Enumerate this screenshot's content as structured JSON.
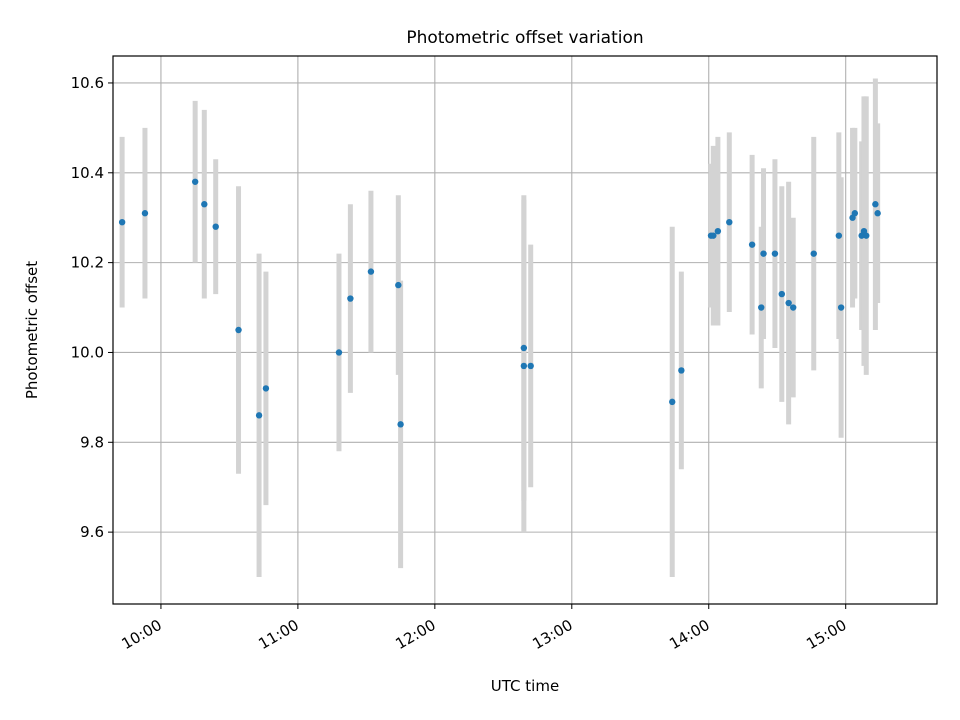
{
  "chart_data": {
    "type": "scatter",
    "title": "Photometric offset variation",
    "xlabel": "UTC time",
    "ylabel": "Photometric offset",
    "xlim": [
      "09:39",
      "15:40"
    ],
    "ylim": [
      9.44,
      10.66
    ],
    "xticks": [
      "10:00",
      "11:00",
      "12:00",
      "13:00",
      "14:00",
      "15:00"
    ],
    "yticks": [
      "9.6",
      "9.8",
      "10.0",
      "10.2",
      "10.4",
      "10.6"
    ],
    "grid": true,
    "legend": "none",
    "colors": {
      "points": "#1f77b4",
      "errorbars": "#d3d3d3",
      "grid": "#b0b0b0"
    },
    "series": [
      {
        "x": [
          "09:43",
          "09:53",
          "10:15",
          "10:19",
          "10:24",
          "10:34",
          "10:43",
          "10:46",
          "11:18",
          "11:23",
          "11:32",
          "11:44",
          "11:45",
          "12:39",
          "12:39",
          "12:42",
          "13:44",
          "13:48",
          "14:01",
          "14:02",
          "14:04",
          "14:09",
          "14:19",
          "14:23",
          "14:24",
          "14:29",
          "14:32",
          "14:35",
          "14:37",
          "14:46",
          "14:57",
          "14:58",
          "15:03",
          "15:04",
          "15:07",
          "15:08",
          "15:09",
          "15:13",
          "15:14"
        ],
        "y": [
          10.29,
          10.31,
          10.38,
          10.33,
          10.28,
          10.05,
          9.86,
          9.92,
          10.0,
          10.12,
          10.18,
          10.15,
          9.84,
          10.01,
          9.97,
          9.97,
          9.89,
          9.96,
          10.26,
          10.26,
          10.27,
          10.29,
          10.24,
          10.1,
          10.22,
          10.22,
          10.13,
          10.11,
          10.1,
          10.22,
          10.26,
          10.1,
          10.3,
          10.31,
          10.26,
          10.27,
          10.26,
          10.33,
          10.31
        ],
        "yerr": [
          0.19,
          0.19,
          0.18,
          0.21,
          0.15,
          0.32,
          0.36,
          0.26,
          0.22,
          0.21,
          0.18,
          0.2,
          0.32,
          0.34,
          0.37,
          0.27,
          0.39,
          0.22,
          0.16,
          0.2,
          0.21,
          0.2,
          0.2,
          0.18,
          0.19,
          0.21,
          0.24,
          0.27,
          0.2,
          0.26,
          0.23,
          0.29,
          0.2,
          0.19,
          0.21,
          0.3,
          0.31,
          0.28,
          0.2
        ]
      }
    ]
  }
}
